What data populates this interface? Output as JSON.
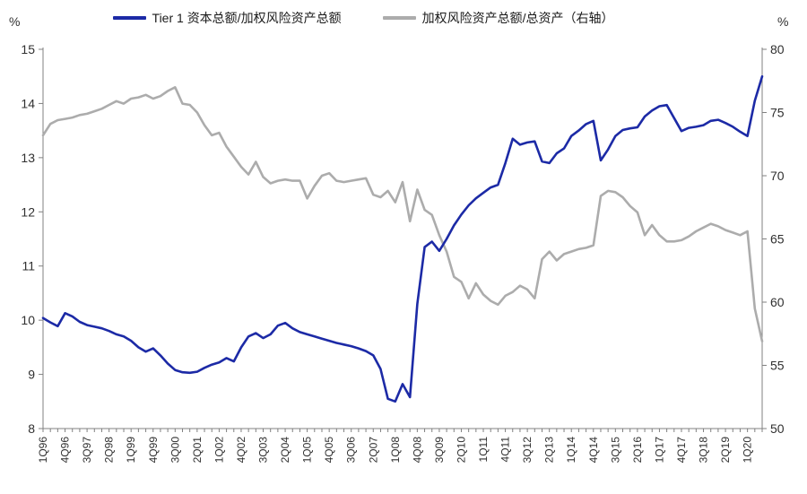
{
  "chart_data": {
    "type": "line",
    "x_frequency": "quarterly",
    "x_range": [
      "1Q96",
      "3Q20"
    ],
    "x_tick_label_every_n_points": 3,
    "x_tick_labels": [
      "1Q96",
      "4Q96",
      "3Q97",
      "2Q98",
      "1Q99",
      "4Q99",
      "3Q00",
      "2Q01",
      "1Q02",
      "4Q02",
      "3Q03",
      "2Q04",
      "1Q05",
      "4Q05",
      "3Q06",
      "2Q07",
      "1Q08",
      "4Q08",
      "3Q09",
      "2Q10",
      "1Q11",
      "4Q11",
      "3Q12",
      "2Q13",
      "1Q14",
      "4Q14",
      "3Q15",
      "2Q16",
      "1Q17",
      "4Q17",
      "3Q18",
      "2Q19",
      "1Q20"
    ],
    "left_axis": {
      "label": "%",
      "min": 8,
      "max": 15,
      "ticks": [
        15,
        14,
        13,
        12,
        11,
        10,
        9,
        8
      ]
    },
    "right_axis": {
      "label": "%",
      "min": 50,
      "max": 80,
      "ticks": [
        80,
        75,
        70,
        65,
        60,
        55,
        50
      ]
    },
    "legend_position": "top",
    "grid": false,
    "series": [
      {
        "name": "Tier 1 资本总额/加权风险资产总额",
        "axis": "left",
        "color": "#1c2aa6",
        "line_width": 2.6,
        "values": [
          10.04,
          9.96,
          9.89,
          10.13,
          10.07,
          9.97,
          9.91,
          9.88,
          9.85,
          9.8,
          9.74,
          9.7,
          9.62,
          9.5,
          9.42,
          9.48,
          9.35,
          9.2,
          9.08,
          9.04,
          9.03,
          9.05,
          9.12,
          9.18,
          9.22,
          9.3,
          9.24,
          9.5,
          9.7,
          9.76,
          9.67,
          9.74,
          9.9,
          9.95,
          9.85,
          9.78,
          9.74,
          9.7,
          9.66,
          9.62,
          9.58,
          9.55,
          9.52,
          9.48,
          9.43,
          9.35,
          9.1,
          8.55,
          8.5,
          8.82,
          8.58,
          10.3,
          11.35,
          11.45,
          11.28,
          11.5,
          11.75,
          11.95,
          12.12,
          12.25,
          12.35,
          12.45,
          12.5,
          12.9,
          13.35,
          13.24,
          13.28,
          13.3,
          12.93,
          12.9,
          13.08,
          13.17,
          13.4,
          13.5,
          13.62,
          13.68,
          12.95,
          13.15,
          13.4,
          13.51,
          13.54,
          13.56,
          13.76,
          13.87,
          13.95,
          13.97,
          13.73,
          13.49,
          13.55,
          13.57,
          13.6,
          13.68,
          13.7,
          13.64,
          13.57,
          13.48,
          13.4,
          14.05,
          14.5
        ]
      },
      {
        "name": "加权风险资产总额/总资产（右轴）",
        "axis": "right",
        "color": "#acacac",
        "line_width": 2.6,
        "values": [
          73.2,
          74.1,
          74.4,
          74.5,
          74.6,
          74.8,
          74.9,
          75.1,
          75.3,
          75.6,
          75.9,
          75.7,
          76.1,
          76.2,
          76.4,
          76.1,
          76.3,
          76.7,
          77.0,
          75.7,
          75.6,
          75.0,
          74.0,
          73.2,
          73.4,
          72.3,
          71.5,
          70.7,
          70.1,
          71.1,
          69.9,
          69.4,
          69.6,
          69.7,
          69.6,
          69.6,
          68.2,
          69.2,
          70.0,
          70.2,
          69.6,
          69.5,
          69.6,
          69.7,
          69.8,
          68.5,
          68.3,
          68.8,
          67.9,
          69.5,
          66.4,
          68.9,
          67.3,
          66.9,
          65.3,
          64.0,
          62.0,
          61.6,
          60.3,
          61.5,
          60.6,
          60.1,
          59.8,
          60.5,
          60.8,
          61.3,
          61.0,
          60.3,
          63.4,
          64.0,
          63.3,
          63.8,
          64.0,
          64.2,
          64.3,
          64.5,
          68.4,
          68.8,
          68.7,
          68.3,
          67.6,
          67.1,
          65.3,
          66.1,
          65.3,
          64.8,
          64.8,
          64.9,
          65.2,
          65.6,
          65.9,
          66.2,
          66.0,
          65.7,
          65.5,
          65.3,
          65.6,
          59.5,
          56.9
        ]
      }
    ]
  }
}
